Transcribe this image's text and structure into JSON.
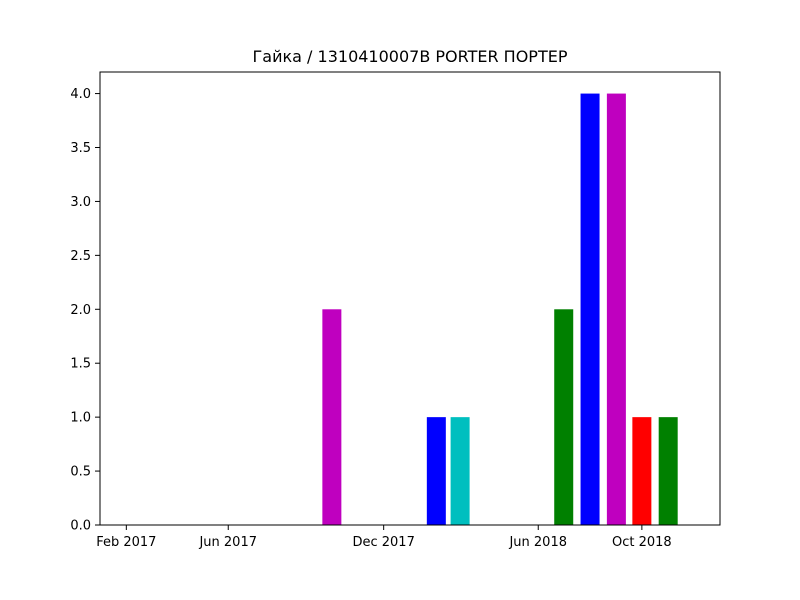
{
  "chart_data": {
    "type": "bar",
    "title": "Гайка / 1310410007B PORTER ПОРТЕР",
    "xlabel": "",
    "ylabel": "",
    "x_range": [
      "2017-01-01",
      "2019-01-01"
    ],
    "ylim": [
      0,
      4.2
    ],
    "grid": false,
    "x_ticks": [
      {
        "date": "2017-02-01",
        "label": "Feb 2017"
      },
      {
        "date": "2017-06-01",
        "label": "Jun 2017"
      },
      {
        "date": "2017-12-01",
        "label": "Dec 2017"
      },
      {
        "date": "2018-06-01",
        "label": "Jun 2018"
      },
      {
        "date": "2018-10-01",
        "label": "Oct 2018"
      }
    ],
    "y_ticks": [
      {
        "value": 0.0,
        "label": "0.0"
      },
      {
        "value": 0.5,
        "label": "0.5"
      },
      {
        "value": 1.0,
        "label": "1.0"
      },
      {
        "value": 1.5,
        "label": "1.5"
      },
      {
        "value": 2.0,
        "label": "2.0"
      },
      {
        "value": 2.5,
        "label": "2.5"
      },
      {
        "value": 3.0,
        "label": "3.0"
      },
      {
        "value": 3.5,
        "label": "3.5"
      },
      {
        "value": 4.0,
        "label": "4.0"
      }
    ],
    "bars": [
      {
        "date": "2017-10-01",
        "value": 2,
        "color": "#bf00bf"
      },
      {
        "date": "2018-02-01",
        "value": 1,
        "color": "#0000ff"
      },
      {
        "date": "2018-03-01",
        "value": 1,
        "color": "#00bfbf"
      },
      {
        "date": "2018-07-01",
        "value": 2,
        "color": "#008000"
      },
      {
        "date": "2018-08-01",
        "value": 4,
        "color": "#0000ff"
      },
      {
        "date": "2018-09-01",
        "value": 4,
        "color": "#bf00bf"
      },
      {
        "date": "2018-10-01",
        "value": 1,
        "color": "#ff0000"
      },
      {
        "date": "2018-11-01",
        "value": 1,
        "color": "#008000"
      }
    ]
  }
}
